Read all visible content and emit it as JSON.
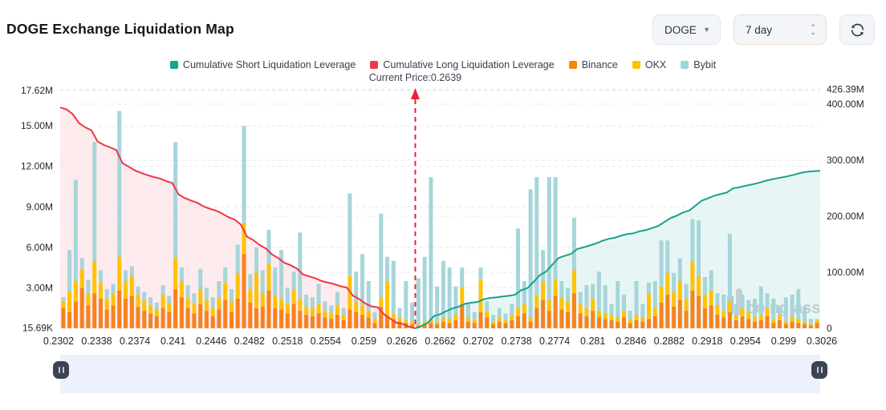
{
  "header": {
    "title": "DOGE Exchange Liquidation Map",
    "symbol_select": "DOGE",
    "period_select": "7 day"
  },
  "legend": [
    {
      "label": "Cumulative Short Liquidation Leverage",
      "color": "#18a292"
    },
    {
      "label": "Cumulative Long Liquidation Leverage",
      "color": "#f23a4c"
    },
    {
      "label": "Binance",
      "color": "#f8860d"
    },
    {
      "label": "OKX",
      "color": "#fdc202"
    },
    {
      "label": "Bybit",
      "color": "#9ed5d8"
    }
  ],
  "annotation": {
    "current_price_label": "Current Price:0.2639",
    "current_price": 0.2639
  },
  "watermark": "coinglass",
  "chart_data": {
    "type": "bar",
    "title": "DOGE Exchange Liquidation Map",
    "x_tick_labels": [
      "0.2302",
      "0.2338",
      "0.2374",
      "0.241",
      "0.2446",
      "0.2482",
      "0.2518",
      "0.2554",
      "0.259",
      "0.2626",
      "0.2662",
      "0.2702",
      "0.2738",
      "0.2774",
      "0.281",
      "0.2846",
      "0.2882",
      "0.2918",
      "0.2954",
      "0.299",
      "0.3026"
    ],
    "left_axis_ticks": [
      {
        "label": "17.62M",
        "value": 17.62
      },
      {
        "label": "15.00M",
        "value": 15
      },
      {
        "label": "12.00M",
        "value": 12
      },
      {
        "label": "9.00M",
        "value": 9
      },
      {
        "label": "6.00M",
        "value": 6
      },
      {
        "label": "3.00M",
        "value": 3
      },
      {
        "label": "15.69K",
        "value": 0.01569
      }
    ],
    "right_axis_ticks": [
      {
        "label": "426.39M",
        "value": 426.39
      },
      {
        "label": "400.00M",
        "value": 400
      },
      {
        "label": "300.00M",
        "value": 300
      },
      {
        "label": "200.00M",
        "value": 200
      },
      {
        "label": "100.00M",
        "value": 100
      },
      {
        "label": "0",
        "value": 0
      }
    ],
    "left_axis_max": 17.62,
    "right_axis_max": 426.39,
    "price_start": 0.2299,
    "price_step": 0.0006,
    "current_price": 0.2639,
    "current_price_index": 57,
    "bar_series": [
      {
        "name": "Binance",
        "color": "#f8821e"
      },
      {
        "name": "OKX",
        "color": "#fdc30a"
      },
      {
        "name": "Bybit",
        "color": "#a6d5da"
      }
    ],
    "bars": [
      [
        1.5,
        0.5,
        0.3
      ],
      [
        1.2,
        1.5,
        3.1
      ],
      [
        2.0,
        1.5,
        7.5
      ],
      [
        3.0,
        1.4,
        0.8
      ],
      [
        1.7,
        0.9,
        1.0
      ],
      [
        2.6,
        2.4,
        8.8
      ],
      [
        2.2,
        1.2,
        0.9
      ],
      [
        1.4,
        0.8,
        0.7
      ],
      [
        1.7,
        0.9,
        0.7
      ],
      [
        2.8,
        2.5,
        10.8
      ],
      [
        2.2,
        1.3,
        0.8
      ],
      [
        2.4,
        1.5,
        0.7
      ],
      [
        1.6,
        0.9,
        0.6
      ],
      [
        1.3,
        0.8,
        0.6
      ],
      [
        1.1,
        0.6,
        0.6
      ],
      [
        0.9,
        0.5,
        0.5
      ],
      [
        1.5,
        1.0,
        0.7
      ],
      [
        1.2,
        0.7,
        0.5
      ],
      [
        2.9,
        2.3,
        8.6
      ],
      [
        2.3,
        1.2,
        1.0
      ],
      [
        1.5,
        0.8,
        0.9
      ],
      [
        1.1,
        0.7,
        0.8
      ],
      [
        1.8,
        1.1,
        1.5
      ],
      [
        1.3,
        0.8,
        0.9
      ],
      [
        0.9,
        0.6,
        0.8
      ],
      [
        1.4,
        0.9,
        1.2
      ],
      [
        2.1,
        1.3,
        1.1
      ],
      [
        1.2,
        0.8,
        0.9
      ],
      [
        2.2,
        1.9,
        2.1
      ],
      [
        5.5,
        2.3,
        7.2
      ],
      [
        1.9,
        1.0,
        1.1
      ],
      [
        1.5,
        2.6,
        1.9
      ],
      [
        1.6,
        1.0,
        1.7
      ],
      [
        2.8,
        2.0,
        2.5
      ],
      [
        1.5,
        0.9,
        2.1
      ],
      [
        1.4,
        0.8,
        3.6
      ],
      [
        1.1,
        0.7,
        1.2
      ],
      [
        1.8,
        1.1,
        1.3
      ],
      [
        1.3,
        0.9,
        4.9
      ],
      [
        1.0,
        0.6,
        0.9
      ],
      [
        0.9,
        0.6,
        0.8
      ],
      [
        1.1,
        0.7,
        1.5
      ],
      [
        0.8,
        0.5,
        0.7
      ],
      [
        0.7,
        0.4,
        0.6
      ],
      [
        1.0,
        0.7,
        1.0
      ],
      [
        0.6,
        0.4,
        0.5
      ],
      [
        1.4,
        2.5,
        6.1
      ],
      [
        1.2,
        0.8,
        2.2
      ],
      [
        1.0,
        0.7,
        3.8
      ],
      [
        0.8,
        0.5,
        2.2
      ],
      [
        0.4,
        0.3,
        0.5
      ],
      [
        1.6,
        0.7,
        6.2
      ],
      [
        0.9,
        2.6,
        1.8
      ],
      [
        0.7,
        0.4,
        3.9
      ],
      [
        0.5,
        0.3,
        0.7
      ],
      [
        0.4,
        0.2,
        2.9
      ],
      [
        0.3,
        0.2,
        1.4
      ],
      [
        0.2,
        0.1,
        3.4
      ],
      [
        0.3,
        0.2,
        4.8
      ],
      [
        0.4,
        0.3,
        10.5
      ],
      [
        0.3,
        0.2,
        2.6
      ],
      [
        0.5,
        0.3,
        4.2
      ],
      [
        0.4,
        0.3,
        3.8
      ],
      [
        0.6,
        0.4,
        2.1
      ],
      [
        1.8,
        1.2,
        1.5
      ],
      [
        0.5,
        0.3,
        1.0
      ],
      [
        0.4,
        0.2,
        0.6
      ],
      [
        1.2,
        2.4,
        0.9
      ],
      [
        0.8,
        0.5,
        0.7
      ],
      [
        0.3,
        0.2,
        0.5
      ],
      [
        0.5,
        0.3,
        0.7
      ],
      [
        0.4,
        0.2,
        0.5
      ],
      [
        0.6,
        0.4,
        0.8
      ],
      [
        0.9,
        0.6,
        5.9
      ],
      [
        1.1,
        0.7,
        1.7
      ],
      [
        0.5,
        0.3,
        9.5
      ],
      [
        1.5,
        1.0,
        8.7
      ],
      [
        2.1,
        1.4,
        2.3
      ],
      [
        1.3,
        0.8,
        9.1
      ],
      [
        2.4,
        1.2,
        7.6
      ],
      [
        1.4,
        0.9,
        1.2
      ],
      [
        1.2,
        0.8,
        1.0
      ],
      [
        2.6,
        1.7,
        3.9
      ],
      [
        1.1,
        0.7,
        0.9
      ],
      [
        0.9,
        0.6,
        1.7
      ],
      [
        1.3,
        0.9,
        1.1
      ],
      [
        0.8,
        0.5,
        2.9
      ],
      [
        0.7,
        0.4,
        2.1
      ],
      [
        0.6,
        0.4,
        0.8
      ],
      [
        0.5,
        0.3,
        2.7
      ],
      [
        0.8,
        0.5,
        1.2
      ],
      [
        0.4,
        0.3,
        0.6
      ],
      [
        0.6,
        0.4,
        2.5
      ],
      [
        0.5,
        0.3,
        1.0
      ],
      [
        0.7,
        1.9,
        0.8
      ],
      [
        0.9,
        0.6,
        2.0
      ],
      [
        1.9,
        1.2,
        3.4
      ],
      [
        2.5,
        1.6,
        2.4
      ],
      [
        1.6,
        1.1,
        1.4
      ],
      [
        2.1,
        1.4,
        1.7
      ],
      [
        1.3,
        0.9,
        1.1
      ],
      [
        2.8,
        2.2,
        3.1
      ],
      [
        2.4,
        1.5,
        4.1
      ],
      [
        1.5,
        1.0,
        1.3
      ],
      [
        1.7,
        1.1,
        1.5
      ],
      [
        1.0,
        0.7,
        0.9
      ],
      [
        0.8,
        0.5,
        1.2
      ],
      [
        1.2,
        0.8,
        5.0
      ],
      [
        0.6,
        0.4,
        0.8
      ],
      [
        0.9,
        0.6,
        1.0
      ],
      [
        0.7,
        0.5,
        0.9
      ],
      [
        0.5,
        0.3,
        1.4
      ],
      [
        0.6,
        0.4,
        2.1
      ],
      [
        0.9,
        0.6,
        1.1
      ],
      [
        0.4,
        0.3,
        1.5
      ],
      [
        0.6,
        0.4,
        0.7
      ],
      [
        0.3,
        0.2,
        1.8
      ],
      [
        0.5,
        0.4,
        1.6
      ],
      [
        0.4,
        0.3,
        2.2
      ],
      [
        0.3,
        0.2,
        1.1
      ],
      [
        0.2,
        0.1,
        0.4
      ],
      [
        0.4,
        0.2,
        0.1
      ]
    ],
    "long_line": {
      "name": "Cumulative Long Liquidation Leverage",
      "color": "#ee3645",
      "fill": "#f43a4c",
      "start_value_m": 394
    },
    "short_line": {
      "name": "Cumulative Short Liquidation Leverage",
      "color": "#17a28f",
      "fill": "#18a292",
      "end_value_m": 281
    }
  }
}
